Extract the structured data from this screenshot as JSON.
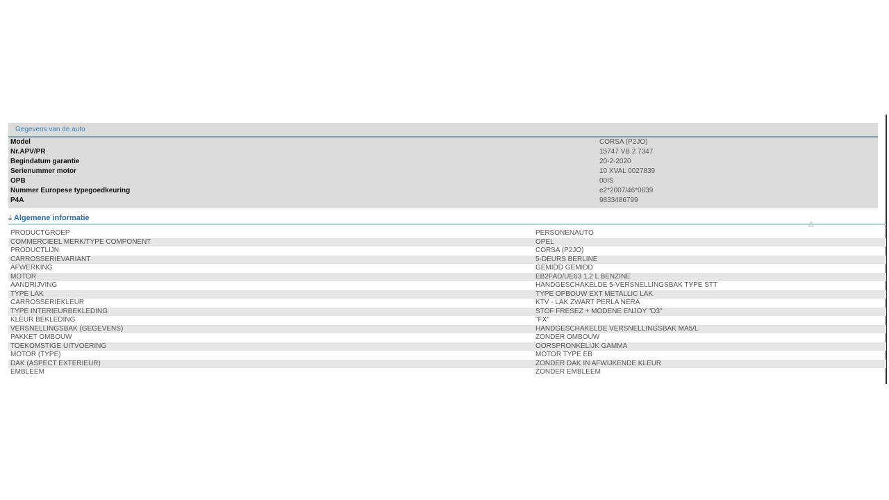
{
  "car_section": {
    "title": "Gegevens van de auto",
    "rows": [
      {
        "label": "Model",
        "value": "CORSA (P2JO)"
      },
      {
        "label": "Nr.APV/PR",
        "value": "15747 VB 2 7347"
      },
      {
        "label": "Begindatum garantie",
        "value": "20-2-2020"
      },
      {
        "label": "Serienummer motor",
        "value": "10 XVAL 0027839"
      },
      {
        "label": "OPB",
        "value": "00IS"
      },
      {
        "label": "Nummer Europese typegoedkeuring",
        "value": "e2*2007/46*0639"
      },
      {
        "label": "P4A",
        "value": "9833486799"
      }
    ]
  },
  "general_section": {
    "title": "Algemene informatie",
    "rows": [
      {
        "label": "PRODUCTGROEP",
        "value": "PERSONENAUTO"
      },
      {
        "label": "COMMERCIEEL MERK/TYPE COMPONENT",
        "value": "OPEL"
      },
      {
        "label": "PRODUCTLIJN",
        "value": "CORSA (P2JO)"
      },
      {
        "label": "CARROSSERIEVARIANT",
        "value": "5-DEURS BERLINE"
      },
      {
        "label": "AFWERKING",
        "value": "GEMIDD GEMIDD"
      },
      {
        "label": "MOTOR",
        "value": "EB2FAD/UE63 1,2 L BENZINE"
      },
      {
        "label": "AANDRIJVING",
        "value": "HANDGESCHAKELDE 5-VERSNELLINGSBAK TYPE STT"
      },
      {
        "label": "TYPE LAK",
        "value": "TYPE OPBOUW EXT METALLIC LAK"
      },
      {
        "label": "CARROSSERIEKLEUR",
        "value": "KTV - LAK ZWART PERLA NERA"
      },
      {
        "label": "TYPE INTERIEURBEKLEDING",
        "value": "STOF FRESEZ + MODENE ENJOY \"D3\""
      },
      {
        "label": "KLEUR BEKLEDING",
        "value": "\"FX\""
      },
      {
        "label": "VERSNELLINGSBAK (GEGEVENS)",
        "value": "HANDGESCHAKELDE VERSNELLINGSBAK MA5/L"
      },
      {
        "label": "PAKKET OMBOUW",
        "value": "ZONDER OMBOUW"
      },
      {
        "label": "TOEKOMSTIGE UITVOERING",
        "value": "OORSPRONKELIJK GAMMA"
      },
      {
        "label": "MOTOR (TYPE)",
        "value": "MOTOR TYPE EB"
      },
      {
        "label": "DAK (ASPECT EXTERIEUR)",
        "value": "ZONDER DAK IN AFWIJKENDE KLEUR"
      },
      {
        "label": "EMBLEEM",
        "value": "ZONDER EMBLEEM"
      }
    ]
  }
}
